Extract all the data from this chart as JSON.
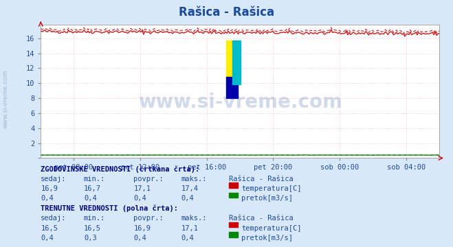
{
  "title": "Rašica - Rašica",
  "title_color": "#1a4a9e",
  "bg_color": "#d8e8f8",
  "plot_bg_color": "#ffffff",
  "watermark_text": "www.si-vreme.com",
  "watermark_color": "#1a4a9e",
  "x_tick_labels": [
    "pet 08:00",
    "pet 12:00",
    "pet 16:00",
    "pet 20:00",
    "sob 00:00",
    "sob 04:00"
  ],
  "x_tick_positions": [
    0.083,
    0.25,
    0.417,
    0.583,
    0.75,
    0.917
  ],
  "yticks": [
    0,
    2,
    4,
    6,
    8,
    10,
    12,
    14,
    16
  ],
  "ymin": 0,
  "ymax": 17.8,
  "temp_hist_color": "#cc0000",
  "temp_curr_color": "#cc0000",
  "flow_hist_color": "#008800",
  "flow_curr_color": "#008800",
  "grid_color": "#ffaaaa",
  "side_label": "www.si-vreme.com",
  "table_text_color": "#1a4a9e",
  "table_label_color": "#000080",
  "hist_sedaj": "16,9",
  "hist_min": "16,7",
  "hist_povpr": "17,1",
  "hist_maks": "17,4",
  "curr_sedaj": "16,5",
  "curr_min": "16,5",
  "curr_povpr": "16,9",
  "curr_maks": "17,1",
  "flow_hist_sedaj": "0,4",
  "flow_hist_min": "0,4",
  "flow_hist_povpr": "0,4",
  "flow_hist_maks": "0,4",
  "flow_curr_sedaj": "0,4",
  "flow_curr_min": "0,3",
  "flow_curr_povpr": "0,4",
  "flow_curr_maks": "0,4",
  "logo_yellow": "#ffee00",
  "logo_blue": "#0000aa",
  "logo_cyan": "#00bbcc"
}
